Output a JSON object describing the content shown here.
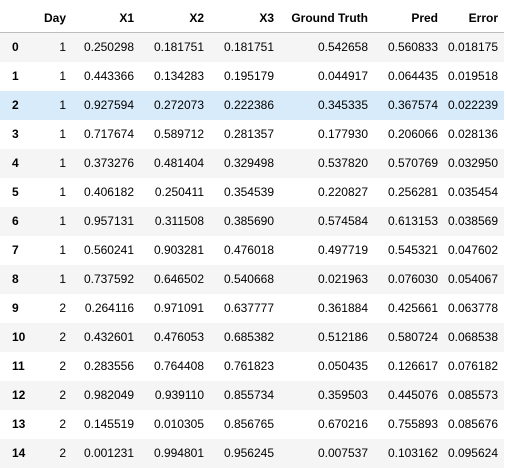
{
  "table": {
    "columns": [
      "",
      "Day",
      "X1",
      "X2",
      "X3",
      "Ground Truth",
      "Pred",
      "Error"
    ],
    "rows": [
      {
        "index": "0",
        "cells": [
          "1",
          "0.250298",
          "0.181751",
          "0.181751",
          "0.542658",
          "0.560833",
          "0.018175"
        ]
      },
      {
        "index": "1",
        "cells": [
          "1",
          "0.443366",
          "0.134283",
          "0.195179",
          "0.044917",
          "0.064435",
          "0.019518"
        ]
      },
      {
        "index": "2",
        "cells": [
          "1",
          "0.927594",
          "0.272073",
          "0.222386",
          "0.345335",
          "0.367574",
          "0.022239"
        ]
      },
      {
        "index": "3",
        "cells": [
          "1",
          "0.717674",
          "0.589712",
          "0.281357",
          "0.177930",
          "0.206066",
          "0.028136"
        ]
      },
      {
        "index": "4",
        "cells": [
          "1",
          "0.373276",
          "0.481404",
          "0.329498",
          "0.537820",
          "0.570769",
          "0.032950"
        ]
      },
      {
        "index": "5",
        "cells": [
          "1",
          "0.406182",
          "0.250411",
          "0.354539",
          "0.220827",
          "0.256281",
          "0.035454"
        ]
      },
      {
        "index": "6",
        "cells": [
          "1",
          "0.957131",
          "0.311508",
          "0.385690",
          "0.574584",
          "0.613153",
          "0.038569"
        ]
      },
      {
        "index": "7",
        "cells": [
          "1",
          "0.560241",
          "0.903281",
          "0.476018",
          "0.497719",
          "0.545321",
          "0.047602"
        ]
      },
      {
        "index": "8",
        "cells": [
          "1",
          "0.737592",
          "0.646502",
          "0.540668",
          "0.021963",
          "0.076030",
          "0.054067"
        ]
      },
      {
        "index": "9",
        "cells": [
          "2",
          "0.264116",
          "0.971091",
          "0.637777",
          "0.361884",
          "0.425661",
          "0.063778"
        ]
      },
      {
        "index": "10",
        "cells": [
          "2",
          "0.432601",
          "0.476053",
          "0.685382",
          "0.512186",
          "0.580724",
          "0.068538"
        ]
      },
      {
        "index": "11",
        "cells": [
          "2",
          "0.283556",
          "0.764408",
          "0.761823",
          "0.050435",
          "0.126617",
          "0.076182"
        ]
      },
      {
        "index": "12",
        "cells": [
          "2",
          "0.982049",
          "0.939110",
          "0.855734",
          "0.359503",
          "0.445076",
          "0.085573"
        ]
      },
      {
        "index": "13",
        "cells": [
          "2",
          "0.145519",
          "0.010305",
          "0.856765",
          "0.670216",
          "0.755893",
          "0.085676"
        ]
      },
      {
        "index": "14",
        "cells": [
          "2",
          "0.001231",
          "0.994801",
          "0.956245",
          "0.007537",
          "0.103162",
          "0.095624"
        ]
      }
    ],
    "highlighted_row": "2",
    "colors": {
      "header_border": "#bdbdbd",
      "stripe": "#f5f5f5",
      "highlight": "#d7ebfa"
    }
  }
}
